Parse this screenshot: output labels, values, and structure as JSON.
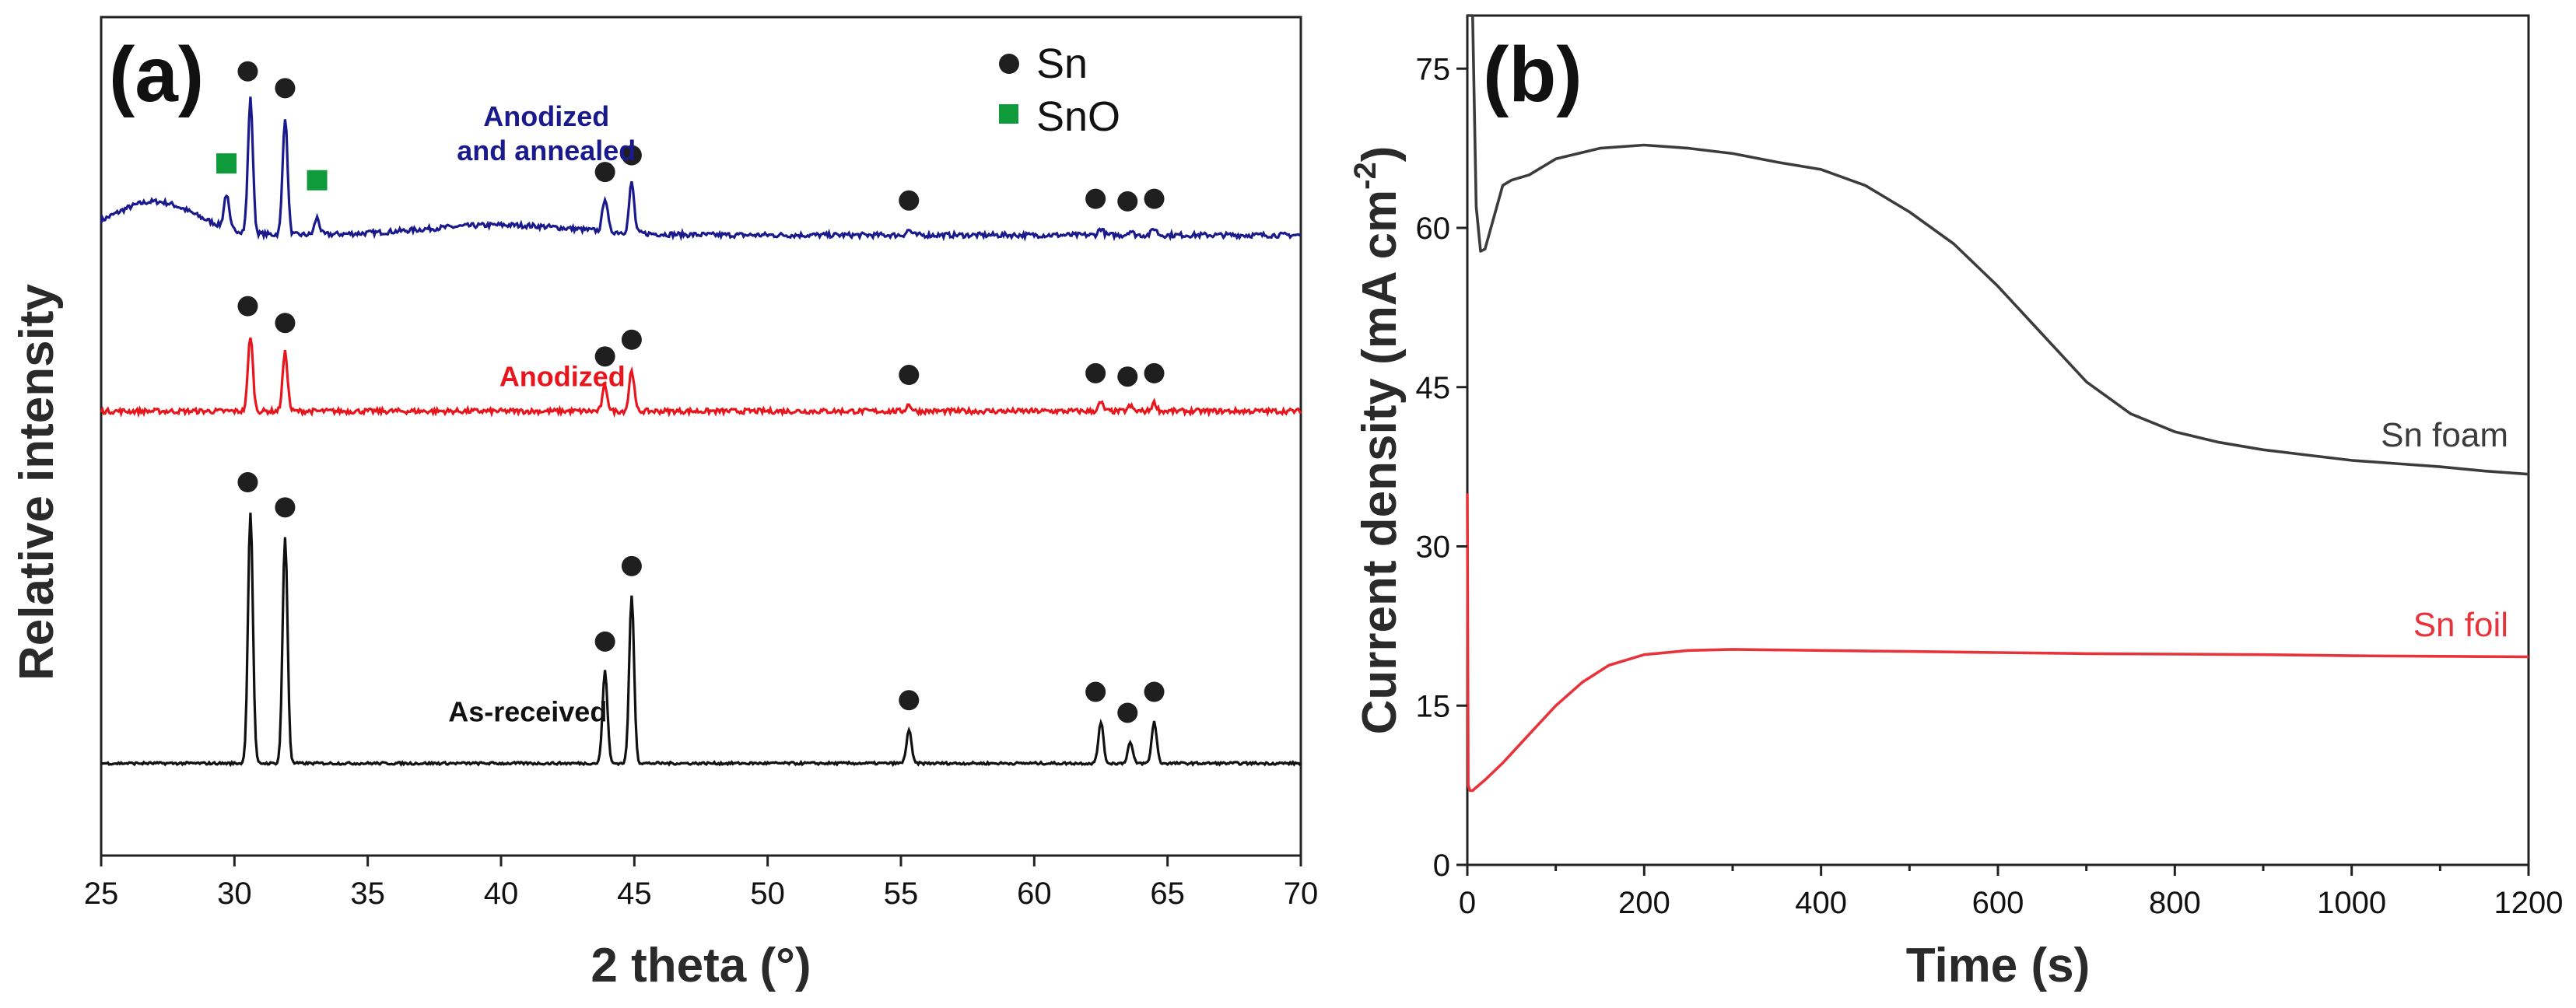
{
  "chart_data": [
    {
      "panel": "(a)",
      "type": "line",
      "xlabel": "2 theta (°)",
      "ylabel": "Relative intensity",
      "xlim": [
        25,
        70
      ],
      "xticks": [
        "25",
        "30",
        "35",
        "40",
        "45",
        "50",
        "55",
        "60",
        "65",
        "70"
      ],
      "legend": {
        "position": "top-right",
        "entries": [
          {
            "marker": "circle",
            "label": "Sn",
            "color": "#1f1f1f"
          },
          {
            "marker": "square",
            "label": "SnO",
            "color": "#0f9a3c"
          }
        ]
      },
      "series": [
        {
          "name": "Anodized and annealed",
          "label_line1": "Anodized",
          "label_line2": "and annealed",
          "color": "#1a1a8c",
          "offset": 0.74,
          "baseline": 0.04,
          "noise": 0.006,
          "peaks": [
            {
              "x": 29.7,
              "h": 0.04
            },
            {
              "x": 30.6,
              "h": 0.16
            },
            {
              "x": 31.9,
              "h": 0.14
            },
            {
              "x": 33.1,
              "h": 0.02
            },
            {
              "x": 43.9,
              "h": 0.04
            },
            {
              "x": 44.9,
              "h": 0.06
            },
            {
              "x": 55.3,
              "h": 0.006
            },
            {
              "x": 62.5,
              "h": 0.008
            },
            {
              "x": 63.6,
              "h": 0.005
            },
            {
              "x": 64.5,
              "h": 0.008
            }
          ],
          "sn_markers": [
            30.5,
            31.9,
            43.9,
            44.9,
            55.3,
            62.3,
            63.5,
            64.5
          ],
          "sno_markers": [
            29.7,
            33.1
          ]
        },
        {
          "name": "Anodized",
          "label_line1": "Anodized",
          "label_line2": "",
          "color": "#e8161c",
          "offset": 0.53,
          "baseline": 0.0,
          "noise": 0.006,
          "peaks": [
            {
              "x": 30.6,
              "h": 0.09
            },
            {
              "x": 31.9,
              "h": 0.07
            },
            {
              "x": 43.9,
              "h": 0.03
            },
            {
              "x": 44.9,
              "h": 0.05
            },
            {
              "x": 55.3,
              "h": 0.008
            },
            {
              "x": 62.5,
              "h": 0.01
            },
            {
              "x": 63.6,
              "h": 0.006
            },
            {
              "x": 64.5,
              "h": 0.01
            }
          ],
          "sn_markers": [
            30.5,
            31.9,
            43.9,
            44.9,
            55.3,
            62.3,
            63.5,
            64.5
          ],
          "sno_markers": []
        },
        {
          "name": "As-received",
          "label_line1": "As-received",
          "label_line2": "",
          "color": "#111111",
          "offset": 0.11,
          "baseline": 0.0,
          "noise": 0.003,
          "peaks": [
            {
              "x": 30.6,
              "h": 0.3
            },
            {
              "x": 31.9,
              "h": 0.27
            },
            {
              "x": 43.9,
              "h": 0.11
            },
            {
              "x": 44.9,
              "h": 0.2
            },
            {
              "x": 55.3,
              "h": 0.04
            },
            {
              "x": 62.5,
              "h": 0.05
            },
            {
              "x": 63.6,
              "h": 0.025
            },
            {
              "x": 64.5,
              "h": 0.05
            }
          ],
          "sn_markers": [
            30.5,
            31.9,
            43.9,
            44.9,
            55.3,
            62.3,
            63.5,
            64.5
          ],
          "sno_markers": []
        }
      ]
    },
    {
      "panel": "(b)",
      "type": "line",
      "xlabel": "Time (s)",
      "ylabel": "Current density (mA cm",
      "ylabel_sup": "-2",
      "ylabel_close": ")",
      "xlim": [
        0,
        1200
      ],
      "ylim": [
        0,
        80
      ],
      "xticks": [
        "0",
        "200",
        "400",
        "600",
        "800",
        "1000",
        "1200"
      ],
      "yticks": [
        "0",
        "15",
        "30",
        "45",
        "60",
        "75"
      ],
      "series": [
        {
          "name": "Sn foam",
          "color": "#3c3c3c",
          "x": [
            0,
            3,
            6,
            10,
            15,
            20,
            30,
            40,
            50,
            70,
            100,
            150,
            200,
            250,
            300,
            350,
            400,
            450,
            500,
            550,
            600,
            650,
            700,
            750,
            800,
            850,
            900,
            950,
            1000,
            1050,
            1100,
            1150,
            1200
          ],
          "y": [
            80,
            80,
            80,
            62,
            57.8,
            58,
            61,
            64,
            64.5,
            65,
            66.5,
            67.5,
            67.8,
            67.5,
            67,
            66.2,
            65.5,
            64,
            61.5,
            58.5,
            54.5,
            50,
            45.5,
            42.5,
            40.8,
            39.8,
            39.1,
            38.6,
            38.1,
            37.8,
            37.5,
            37.1,
            36.8
          ]
        },
        {
          "name": "Sn foil",
          "color": "#e8333a",
          "x": [
            0,
            1,
            3,
            6,
            10,
            20,
            40,
            60,
            80,
            100,
            130,
            160,
            200,
            250,
            300,
            400,
            500,
            600,
            700,
            800,
            900,
            1000,
            1100,
            1200
          ],
          "y": [
            35,
            7.5,
            7,
            7,
            7.3,
            8,
            9.6,
            11.4,
            13.2,
            15,
            17.2,
            18.8,
            19.8,
            20.2,
            20.3,
            20.2,
            20.1,
            20,
            19.9,
            19.85,
            19.8,
            19.7,
            19.65,
            19.6
          ]
        }
      ]
    }
  ]
}
